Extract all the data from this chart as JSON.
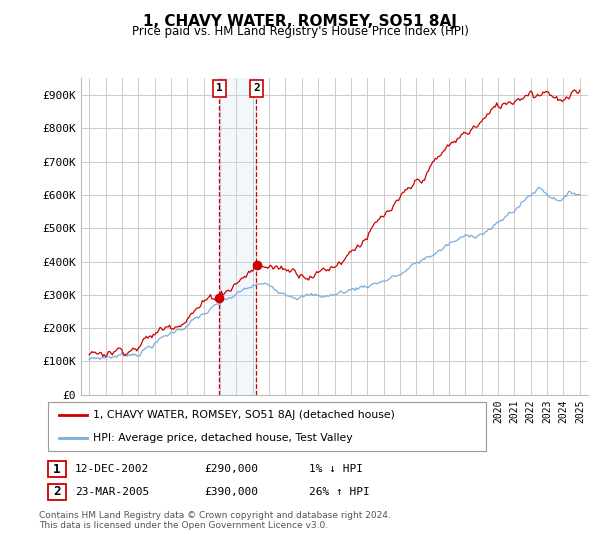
{
  "title": "1, CHAVY WATER, ROMSEY, SO51 8AJ",
  "subtitle": "Price paid vs. HM Land Registry's House Price Index (HPI)",
  "ylabel_ticks": [
    "£0",
    "£100K",
    "£200K",
    "£300K",
    "£400K",
    "£500K",
    "£600K",
    "£700K",
    "£800K",
    "£900K"
  ],
  "ytick_vals": [
    0,
    100000,
    200000,
    300000,
    400000,
    500000,
    600000,
    700000,
    800000,
    900000
  ],
  "ylim": [
    0,
    950000
  ],
  "red_line_color": "#cc0000",
  "blue_line_color": "#7aaddd",
  "sale1_year": 2002.95,
  "sale1_price": 290000,
  "sale2_year": 2005.22,
  "sale2_price": 390000,
  "legend_line1": "1, CHAVY WATER, ROMSEY, SO51 8AJ (detached house)",
  "legend_line2": "HPI: Average price, detached house, Test Valley",
  "table_row1": [
    "1",
    "12-DEC-2002",
    "£290,000",
    "1% ↓ HPI"
  ],
  "table_row2": [
    "2",
    "23-MAR-2005",
    "£390,000",
    "26% ↑ HPI"
  ],
  "footnote": "Contains HM Land Registry data © Crown copyright and database right 2024.\nThis data is licensed under the Open Government Licence v3.0.",
  "background_color": "#ffffff",
  "grid_color": "#cccccc",
  "shading_color": "#cce0f5"
}
